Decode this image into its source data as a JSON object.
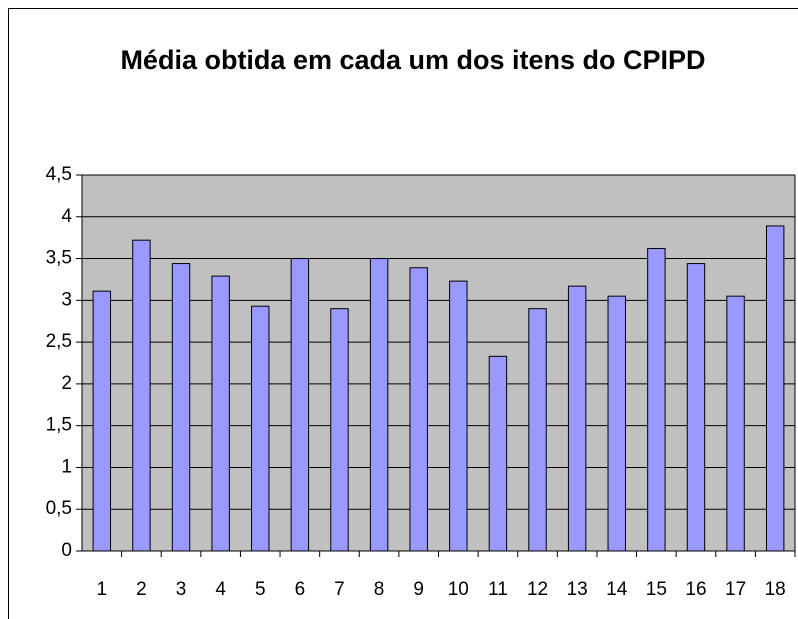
{
  "chart_data": {
    "type": "bar",
    "title": "Média obtida em cada um dos itens do CPIPD",
    "categories": [
      "1",
      "2",
      "3",
      "4",
      "5",
      "6",
      "7",
      "8",
      "9",
      "10",
      "11",
      "12",
      "13",
      "14",
      "15",
      "16",
      "17",
      "18"
    ],
    "values": [
      3.11,
      3.72,
      3.44,
      3.29,
      2.93,
      3.5,
      2.9,
      3.5,
      3.39,
      3.23,
      2.33,
      2.9,
      3.17,
      3.05,
      3.62,
      3.44,
      3.05,
      3.89
    ],
    "color": "#9999ff",
    "background": "#c0c0c0",
    "ylim": [
      0,
      4.5
    ],
    "yticks": [
      0,
      {
        "value": 0.5,
        "label": "0,5"
      },
      1,
      {
        "value": 1.5,
        "label": "1,5"
      },
      2,
      {
        "value": 2.5,
        "label": "2,5"
      },
      3,
      {
        "value": 3.5,
        "label": "3,5"
      },
      4,
      {
        "value": 4.5,
        "label": "4,5"
      }
    ],
    "grid": true
  }
}
